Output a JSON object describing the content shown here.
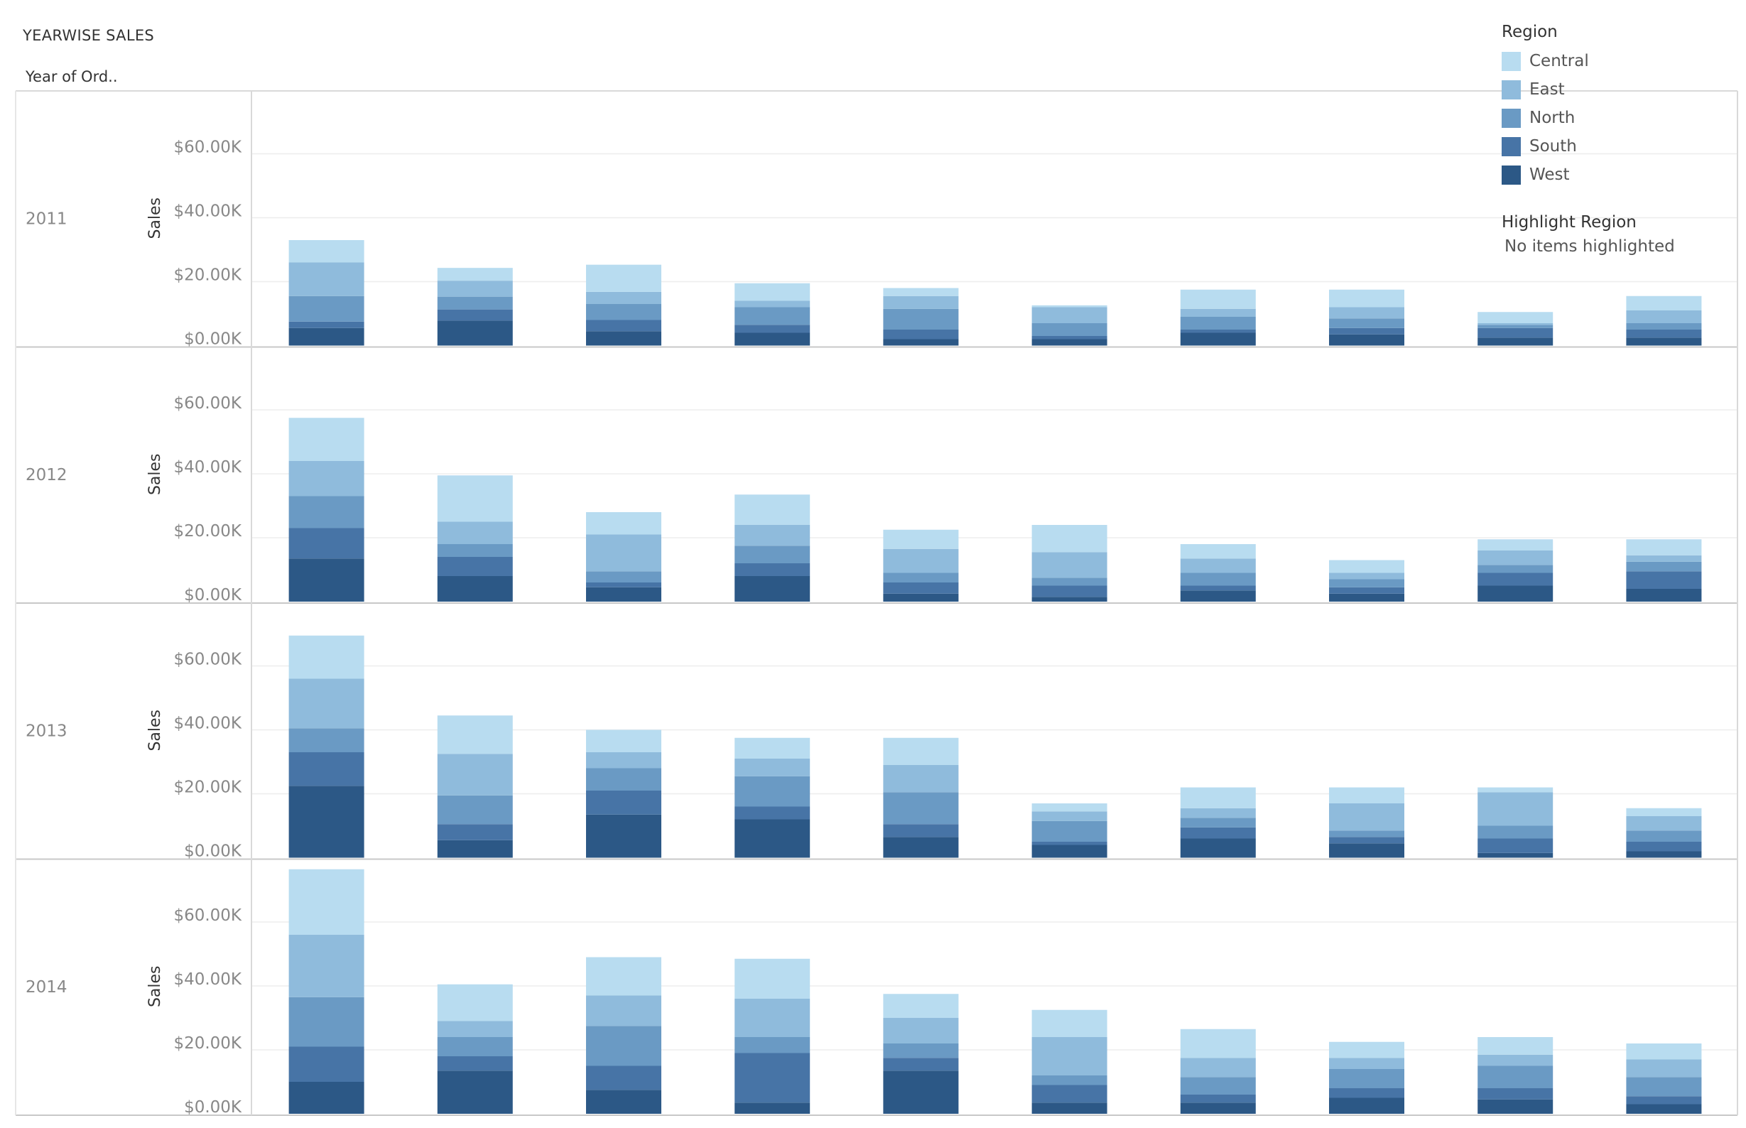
{
  "title": "YEARWISE SALES",
  "row_header": "Year of Ord..",
  "legend": {
    "title": "Region",
    "items": [
      {
        "label": "Central",
        "color": "#b8dcf0"
      },
      {
        "label": "East",
        "color": "#8fbbdc"
      },
      {
        "label": "North",
        "color": "#6a9ac4"
      },
      {
        "label": "South",
        "color": "#4774a6"
      },
      {
        "label": "West",
        "color": "#2c5886"
      }
    ]
  },
  "highlight": {
    "title": "Highlight Region",
    "value": "No items highlighted"
  },
  "chart_data": {
    "type": "bar",
    "stacked": true,
    "ylabel": "Sales",
    "ylim": [
      0,
      80000
    ],
    "yticks": [
      0,
      20000,
      40000,
      60000
    ],
    "ytick_labels": [
      "$0.00K",
      "$20.00K",
      "$40.00K",
      "$60.00K"
    ],
    "series_order": [
      "West",
      "South",
      "North",
      "East",
      "Central"
    ],
    "panels": [
      {
        "year": "2011",
        "bars": [
          [
            5500,
            2000,
            8000,
            10500,
            7000
          ],
          [
            7800,
            3500,
            4000,
            5000,
            4000
          ],
          [
            4500,
            3500,
            5000,
            3800,
            8500
          ],
          [
            4000,
            2500,
            5500,
            2000,
            5500
          ],
          [
            2000,
            3000,
            6500,
            4000,
            2500
          ],
          [
            2000,
            1000,
            4000,
            5000,
            600
          ],
          [
            4000,
            1000,
            4000,
            2500,
            6000
          ],
          [
            3500,
            2000,
            3000,
            3500,
            5500
          ],
          [
            2500,
            3000,
            1000,
            500,
            3500
          ],
          [
            2500,
            2500,
            2000,
            4000,
            4500
          ]
        ]
      },
      {
        "year": "2012",
        "bars": [
          [
            13500,
            9500,
            10000,
            11000,
            13500
          ],
          [
            8000,
            6000,
            4000,
            7000,
            14500
          ],
          [
            4500,
            1500,
            3500,
            11500,
            7000
          ],
          [
            8000,
            4000,
            5500,
            6500,
            9500
          ],
          [
            2500,
            3500,
            3000,
            7500,
            6000
          ],
          [
            1500,
            3500,
            2500,
            8000,
            8500
          ],
          [
            3500,
            1500,
            4000,
            4500,
            4500
          ],
          [
            2500,
            2000,
            2500,
            2000,
            4000
          ],
          [
            5000,
            4000,
            2500,
            4500,
            3500
          ],
          [
            4000,
            5500,
            3000,
            2000,
            5000
          ]
        ]
      },
      {
        "year": "2013",
        "bars": [
          [
            22500,
            10500,
            7500,
            15500,
            13500
          ],
          [
            5500,
            5000,
            9000,
            13000,
            12000
          ],
          [
            13500,
            7500,
            7000,
            5000,
            7000
          ],
          [
            12000,
            4000,
            9500,
            5500,
            6500
          ],
          [
            6500,
            4000,
            10000,
            8500,
            8500
          ],
          [
            4000,
            1000,
            6500,
            3000,
            2500
          ],
          [
            6000,
            3500,
            3000,
            3000,
            6500
          ],
          [
            4500,
            2000,
            2000,
            8500,
            5000
          ],
          [
            1500,
            4500,
            4000,
            10500,
            1500
          ],
          [
            2000,
            3000,
            3500,
            4500,
            2500
          ]
        ]
      },
      {
        "year": "2014",
        "bars": [
          [
            10000,
            11000,
            15500,
            19500,
            20500
          ],
          [
            13500,
            4500,
            6000,
            5000,
            11500
          ],
          [
            7500,
            7500,
            12500,
            9500,
            12000
          ],
          [
            3500,
            15500,
            5000,
            12000,
            12500
          ],
          [
            13500,
            4000,
            4500,
            8000,
            7500
          ],
          [
            3500,
            5500,
            3000,
            12000,
            8500
          ],
          [
            3500,
            2500,
            5500,
            6000,
            9000
          ],
          [
            5000,
            3000,
            6000,
            3500,
            5000
          ],
          [
            4500,
            3500,
            7000,
            3500,
            5500
          ],
          [
            3000,
            2500,
            6000,
            5500,
            5000
          ]
        ]
      }
    ]
  }
}
